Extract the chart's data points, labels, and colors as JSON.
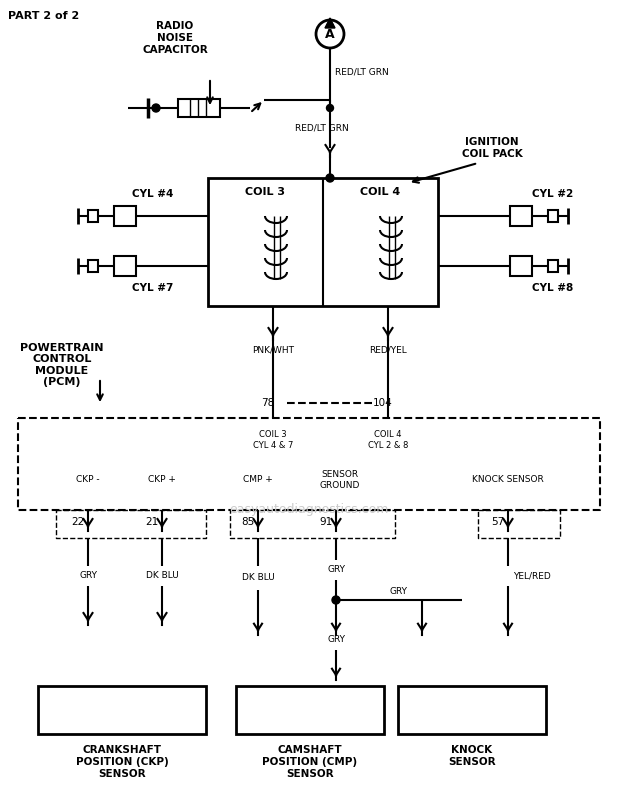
{
  "title": "PART 2 of 2",
  "bg_color": "#ffffff",
  "line_color": "#000000",
  "watermark": "easyautodiagnostics.com",
  "watermark_color": "#cccccc",
  "components": {
    "connector_A_label": "A",
    "radio_noise_label": "RADIO\nNOISE\nCAPACITOR",
    "ignition_coil_label": "IGNITION\nCOIL PACK",
    "coil3_label": "COIL 3",
    "coil4_label": "COIL 4",
    "cyl4_label": "CYL #4",
    "cyl2_label": "CYL #2",
    "cyl7_label": "CYL #7",
    "cyl8_label": "CYL #8",
    "pcm_label": "POWERTRAIN\nCONTROL\nMODULE\n(PCM)",
    "wire_red_lt_grn": "RED/LT GRN",
    "wire_pnk_wht": "PNK/WHT",
    "wire_red_yel": "RED/YEL",
    "pin78": "78",
    "pin104": "104",
    "coil3_cyl_label": "COIL 3\nCYL 4 & 7",
    "coil4_cyl_label": "COIL 4\nCYL 2 & 8",
    "ckp_minus": "CKP -",
    "ckp_plus": "CKP +",
    "cmp_plus": "CMP +",
    "sensor_ground": "SENSOR\nGROUND",
    "knock_sensor_label": "KNOCK SENSOR",
    "pin22": "22",
    "pin21": "21",
    "pin85": "85",
    "pin91": "91",
    "pin57": "57",
    "gry1": "GRY",
    "dk_blu1": "DK BLU",
    "dk_blu2": "DK BLU",
    "gry2": "GRY",
    "gry3": "GRY",
    "gry4": "GRY",
    "yel_red": "YEL/RED",
    "crankshaft_label": "CRANKSHAFT\nPOSITION (CKP)\nSENSOR",
    "camshaft_label": "CAMSHAFT\nPOSITION (CMP)\nSENSOR",
    "knock_sensor_box_label": "KNOCK\nSENSOR"
  }
}
